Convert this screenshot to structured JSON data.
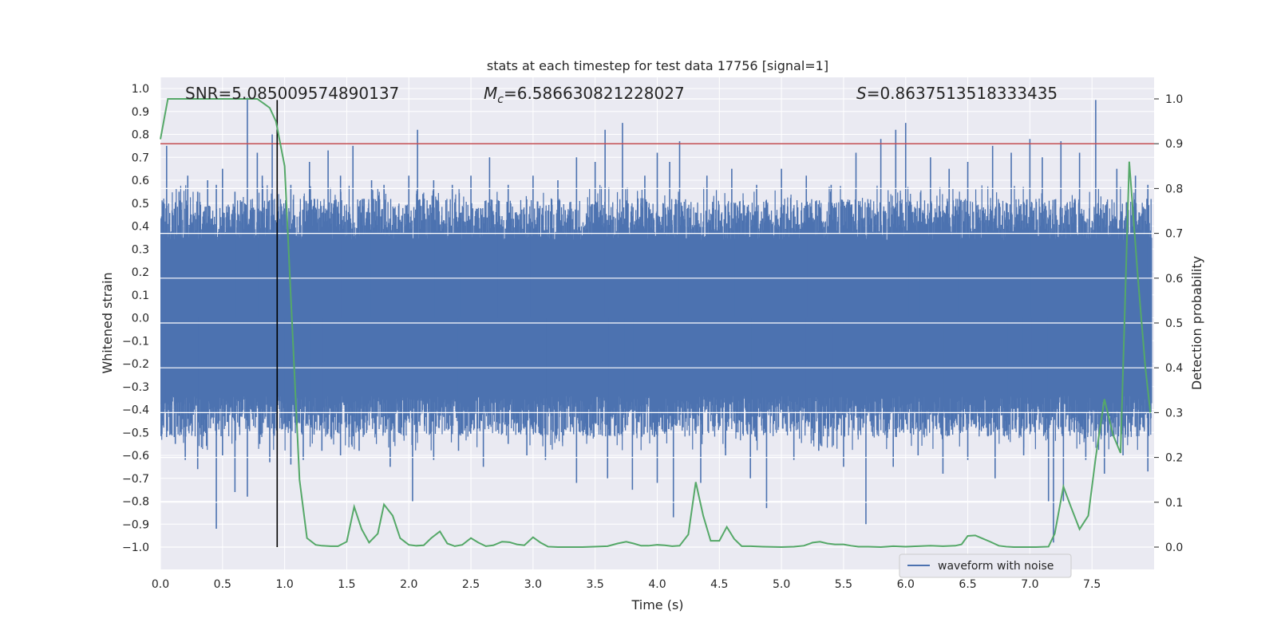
{
  "chart_data": {
    "type": "line",
    "title": "stats at each timestep for test data 17756 [signal=1]",
    "xlabel": "Time (s)",
    "ylabel_left": "Whitened strain",
    "ylabel_right": "Detection probability",
    "xlim": [
      0.0,
      8.0
    ],
    "ylim_left": [
      -1.1,
      1.05
    ],
    "ylim_right": [
      -0.05,
      1.05
    ],
    "x_ticks": [
      0.0,
      0.5,
      1.0,
      1.5,
      2.0,
      2.5,
      3.0,
      3.5,
      4.0,
      4.5,
      5.0,
      5.5,
      6.0,
      6.5,
      7.0,
      7.5
    ],
    "x_tick_labels": [
      "0.0",
      "0.5",
      "1.0",
      "1.5",
      "2.0",
      "2.5",
      "3.0",
      "3.5",
      "4.0",
      "4.5",
      "5.0",
      "5.5",
      "6.0",
      "6.5",
      "7.0",
      "7.5"
    ],
    "y_left_ticks": [
      1.0,
      0.9,
      0.8,
      0.7,
      0.6,
      0.5,
      0.4,
      0.3,
      0.2,
      0.1,
      0.0,
      -0.1,
      -0.2,
      -0.3,
      -0.4,
      -0.5,
      -0.6,
      -0.7,
      -0.8,
      -0.9,
      -1.0
    ],
    "y_left_tick_labels": [
      "1.0",
      "0.9",
      "0.8",
      "0.7",
      "0.6",
      "0.5",
      "0.4",
      "0.3",
      "0.2",
      "0.1",
      "0.0",
      "−0.1",
      "−0.2",
      "−0.3",
      "−0.4",
      "−0.5",
      "−0.6",
      "−0.7",
      "−0.8",
      "−0.9",
      "−1.0"
    ],
    "y_right_ticks": [
      1.0,
      0.9,
      0.8,
      0.7,
      0.6,
      0.5,
      0.4,
      0.3,
      0.2,
      0.1,
      0.0
    ],
    "y_right_tick_labels": [
      "1.0",
      "0.9",
      "0.8",
      "0.7",
      "0.6",
      "0.5",
      "0.4",
      "0.3",
      "0.2",
      "0.1",
      "0.0"
    ],
    "grid": true,
    "annotations": {
      "snr": "SNR=5.085009574890137",
      "mc_symbol": "M",
      "mc_sub": "c",
      "mc_value": "=6.586630821228027",
      "s_symbol": "S",
      "s_value": "=0.8637513518333435"
    },
    "threshold_right_axis": 0.9,
    "vertical_marker_time": 0.94,
    "series": [
      {
        "name": "waveform with noise",
        "axis": "left",
        "color": "#4c72b0",
        "style": "noise",
        "band_low": -0.4,
        "band_high": 0.4,
        "spikes_up": [
          [
            0.05,
            0.75
          ],
          [
            0.15,
            0.55
          ],
          [
            0.22,
            0.62
          ],
          [
            0.3,
            0.55
          ],
          [
            0.38,
            0.6
          ],
          [
            0.45,
            0.58
          ],
          [
            0.5,
            0.65
          ],
          [
            0.6,
            0.55
          ],
          [
            0.7,
            0.96
          ],
          [
            0.78,
            0.72
          ],
          [
            0.82,
            0.62
          ],
          [
            0.9,
            0.8
          ],
          [
            1.05,
            0.58
          ],
          [
            1.2,
            0.68
          ],
          [
            1.35,
            0.73
          ],
          [
            1.45,
            0.62
          ],
          [
            1.55,
            0.75
          ],
          [
            1.7,
            0.6
          ],
          [
            1.8,
            0.58
          ],
          [
            2.0,
            0.62
          ],
          [
            2.07,
            0.82
          ],
          [
            2.2,
            0.6
          ],
          [
            2.35,
            0.58
          ],
          [
            2.5,
            0.62
          ],
          [
            2.65,
            0.7
          ],
          [
            2.8,
            0.58
          ],
          [
            3.0,
            0.62
          ],
          [
            3.2,
            0.6
          ],
          [
            3.35,
            0.7
          ],
          [
            3.5,
            0.68
          ],
          [
            3.58,
            0.82
          ],
          [
            3.72,
            0.85
          ],
          [
            3.9,
            0.62
          ],
          [
            4.0,
            0.72
          ],
          [
            4.1,
            0.68
          ],
          [
            4.18,
            0.77
          ],
          [
            4.4,
            0.62
          ],
          [
            4.6,
            0.65
          ],
          [
            4.8,
            0.58
          ],
          [
            5.0,
            0.65
          ],
          [
            5.2,
            0.62
          ],
          [
            5.4,
            0.58
          ],
          [
            5.6,
            0.72
          ],
          [
            5.8,
            0.78
          ],
          [
            5.92,
            0.82
          ],
          [
            6.0,
            0.85
          ],
          [
            6.2,
            0.7
          ],
          [
            6.35,
            0.65
          ],
          [
            6.5,
            0.68
          ],
          [
            6.7,
            0.75
          ],
          [
            6.85,
            0.72
          ],
          [
            7.0,
            0.78
          ],
          [
            7.1,
            0.7
          ],
          [
            7.25,
            0.77
          ],
          [
            7.4,
            0.72
          ],
          [
            7.53,
            0.95
          ],
          [
            7.7,
            0.65
          ],
          [
            7.85,
            0.62
          ],
          [
            7.95,
            0.58
          ]
        ],
        "spikes_down": [
          [
            0.05,
            -0.52
          ],
          [
            0.12,
            -0.55
          ],
          [
            0.2,
            -0.62
          ],
          [
            0.3,
            -0.66
          ],
          [
            0.45,
            -0.92
          ],
          [
            0.5,
            -0.6
          ],
          [
            0.6,
            -0.76
          ],
          [
            0.7,
            -0.78
          ],
          [
            0.8,
            -0.55
          ],
          [
            0.88,
            -0.63
          ],
          [
            1.05,
            -0.64
          ],
          [
            1.15,
            -0.62
          ],
          [
            1.3,
            -0.58
          ],
          [
            1.45,
            -0.6
          ],
          [
            1.6,
            -0.58
          ],
          [
            1.85,
            -0.65
          ],
          [
            2.03,
            -0.8
          ],
          [
            2.2,
            -0.62
          ],
          [
            2.4,
            -0.58
          ],
          [
            2.6,
            -0.65
          ],
          [
            2.8,
            -0.55
          ],
          [
            2.95,
            -0.6
          ],
          [
            3.1,
            -0.62
          ],
          [
            3.35,
            -0.72
          ],
          [
            3.6,
            -0.7
          ],
          [
            3.8,
            -0.75
          ],
          [
            4.0,
            -0.72
          ],
          [
            4.13,
            -0.87
          ],
          [
            4.35,
            -0.72
          ],
          [
            4.55,
            -0.6
          ],
          [
            4.75,
            -0.7
          ],
          [
            4.88,
            -0.83
          ],
          [
            5.1,
            -0.62
          ],
          [
            5.3,
            -0.58
          ],
          [
            5.5,
            -0.65
          ],
          [
            5.68,
            -0.9
          ],
          [
            5.9,
            -0.65
          ],
          [
            6.1,
            -0.6
          ],
          [
            6.3,
            -0.68
          ],
          [
            6.5,
            -0.62
          ],
          [
            6.72,
            -0.7
          ],
          [
            6.95,
            -0.6
          ],
          [
            7.15,
            -0.8
          ],
          [
            7.19,
            -0.98
          ],
          [
            7.27,
            -0.8
          ],
          [
            7.45,
            -0.62
          ],
          [
            7.6,
            -0.68
          ],
          [
            7.75,
            -0.6
          ],
          [
            7.95,
            -0.67
          ]
        ]
      },
      {
        "name": "",
        "axis": "right",
        "color": "#55a868",
        "x": [
          0.0,
          0.06,
          0.3,
          0.6,
          0.7,
          0.78,
          0.83,
          0.88,
          0.93,
          1.0,
          1.06,
          1.12,
          1.18,
          1.25,
          1.3,
          1.37,
          1.43,
          1.5,
          1.56,
          1.62,
          1.68,
          1.75,
          1.8,
          1.87,
          1.93,
          2.0,
          2.06,
          2.12,
          2.18,
          2.25,
          2.31,
          2.37,
          2.43,
          2.5,
          2.56,
          2.62,
          2.68,
          2.75,
          2.81,
          2.87,
          2.93,
          3.0,
          3.06,
          3.12,
          3.2,
          3.4,
          3.6,
          3.68,
          3.75,
          3.81,
          3.87,
          3.93,
          4.0,
          4.06,
          4.12,
          4.18,
          4.25,
          4.31,
          4.37,
          4.43,
          4.5,
          4.56,
          4.62,
          4.68,
          4.75,
          4.85,
          5.0,
          5.1,
          5.18,
          5.25,
          5.31,
          5.37,
          5.43,
          5.5,
          5.56,
          5.62,
          5.7,
          5.8,
          5.9,
          6.0,
          6.1,
          6.2,
          6.3,
          6.4,
          6.45,
          6.5,
          6.56,
          6.62,
          6.68,
          6.75,
          6.81,
          6.87,
          6.95,
          7.05,
          7.15,
          7.2,
          7.27,
          7.33,
          7.4,
          7.47,
          7.53,
          7.6,
          7.67,
          7.73,
          7.8,
          7.87,
          7.93,
          7.97
        ],
        "y": [
          0.91,
          1.0,
          1.0,
          1.0,
          1.0,
          1.0,
          0.99,
          0.98,
          0.95,
          0.85,
          0.5,
          0.15,
          0.02,
          0.005,
          0.003,
          0.002,
          0.002,
          0.012,
          0.09,
          0.04,
          0.01,
          0.03,
          0.095,
          0.07,
          0.02,
          0.005,
          0.003,
          0.004,
          0.02,
          0.035,
          0.008,
          0.002,
          0.005,
          0.02,
          0.01,
          0.002,
          0.004,
          0.012,
          0.011,
          0.006,
          0.004,
          0.022,
          0.01,
          0.001,
          0.0,
          0.0,
          0.002,
          0.008,
          0.012,
          0.008,
          0.003,
          0.003,
          0.005,
          0.004,
          0.002,
          0.003,
          0.028,
          0.145,
          0.07,
          0.014,
          0.014,
          0.045,
          0.018,
          0.002,
          0.002,
          0.001,
          0.0,
          0.001,
          0.003,
          0.01,
          0.012,
          0.008,
          0.006,
          0.006,
          0.003,
          0.001,
          0.001,
          0.0,
          0.002,
          0.001,
          0.002,
          0.003,
          0.002,
          0.003,
          0.006,
          0.025,
          0.026,
          0.019,
          0.012,
          0.003,
          0.001,
          0.0,
          0.0,
          0.0,
          0.001,
          0.03,
          0.135,
          0.09,
          0.04,
          0.07,
          0.2,
          0.33,
          0.25,
          0.21,
          0.86,
          0.6,
          0.4,
          0.3
        ]
      }
    ]
  }
}
